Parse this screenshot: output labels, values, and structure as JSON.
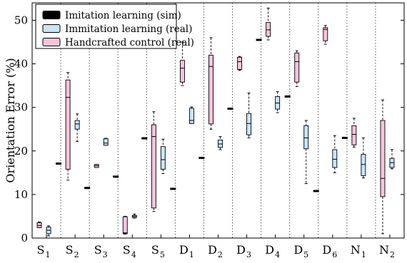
{
  "chart_data": {
    "type": "box",
    "ylabel": "Orientation Error (%)",
    "ylim": [
      0,
      54
    ],
    "yticks": [
      0,
      10,
      20,
      30,
      40,
      50
    ],
    "categories": [
      {
        "main": "S",
        "sub": "1"
      },
      {
        "main": "S",
        "sub": "2"
      },
      {
        "main": "S",
        "sub": "3"
      },
      {
        "main": "S",
        "sub": "4"
      },
      {
        "main": "S",
        "sub": "5"
      },
      {
        "main": "D",
        "sub": "1"
      },
      {
        "main": "D",
        "sub": "2"
      },
      {
        "main": "D",
        "sub": "3"
      },
      {
        "main": "D",
        "sub": "4"
      },
      {
        "main": "D",
        "sub": "5"
      },
      {
        "main": "D",
        "sub": "6"
      },
      {
        "main": "N",
        "sub": "1"
      },
      {
        "main": "N",
        "sub": "2"
      }
    ],
    "legend_position": "top-left",
    "series": [
      {
        "name": "Handcrafted control (real)",
        "color": "#f7c4dc",
        "boxes": [
          {
            "min": 2.4,
            "q1": 2.4,
            "median": 2.9,
            "q3": 3.5,
            "max": 3.7
          },
          {
            "min": 13.3,
            "q1": 15.8,
            "median": 32.3,
            "q3": 36.3,
            "max": 38.0
          },
          {
            "min": 16.2,
            "q1": 16.2,
            "median": 16.6,
            "q3": 16.9,
            "max": 16.9
          },
          {
            "min": 0.9,
            "q1": 1.0,
            "median": 1.2,
            "q3": 4.9,
            "max": 5.0
          },
          {
            "min": 6.1,
            "q1": 6.9,
            "median": 23.3,
            "q3": 26.0,
            "max": 29.0
          },
          {
            "min": 35.0,
            "q1": 35.8,
            "median": 39.0,
            "q3": 40.8,
            "max": 45.0
          },
          {
            "min": 25.0,
            "q1": 26.2,
            "median": 39.4,
            "q3": 42.0,
            "max": 46.0
          },
          {
            "min": 38.5,
            "q1": 38.7,
            "median": 40.5,
            "q3": 41.5,
            "max": 41.7
          },
          {
            "min": 45.5,
            "q1": 46.3,
            "median": 47.8,
            "q3": 49.5,
            "max": 52.8
          },
          {
            "min": 34.8,
            "q1": 35.8,
            "median": 40.5,
            "q3": 42.5,
            "max": 43.0
          },
          {
            "min": 44.5,
            "q1": 45.3,
            "median": 47.9,
            "q3": 48.3,
            "max": 48.8
          },
          {
            "min": 20.9,
            "q1": 21.4,
            "median": 23.8,
            "q3": 25.8,
            "max": 27.5
          },
          {
            "min": 1.0,
            "q1": 9.5,
            "median": 13.7,
            "q3": 27.0,
            "max": 31.7
          }
        ]
      },
      {
        "name": "Immitation learning (real)",
        "color": "#c9e5fb",
        "boxes": [
          {
            "min": 0.5,
            "q1": 1.0,
            "median": 1.8,
            "q3": 2.5,
            "max": 2.8
          },
          {
            "min": 22.2,
            "q1": 25.0,
            "median": 26.2,
            "q3": 27.0,
            "max": 28.5
          },
          {
            "min": 21.3,
            "q1": 21.3,
            "median": 21.8,
            "q3": 22.8,
            "max": 22.9
          },
          {
            "min": 4.6,
            "q1": 4.7,
            "median": 5.0,
            "q3": 5.2,
            "max": 5.5
          },
          {
            "min": 14.8,
            "q1": 15.8,
            "median": 18.0,
            "q3": 21.0,
            "max": 22.7
          },
          {
            "min": 26.3,
            "q1": 26.3,
            "median": 27.0,
            "q3": 29.8,
            "max": 30.1
          },
          {
            "min": 20.3,
            "q1": 20.8,
            "median": 21.6,
            "q3": 22.5,
            "max": 23.3
          },
          {
            "min": 23.0,
            "q1": 23.7,
            "median": 26.3,
            "q3": 28.6,
            "max": 33.3
          },
          {
            "min": 28.8,
            "q1": 29.6,
            "median": 31.0,
            "q3": 32.5,
            "max": 33.6
          },
          {
            "min": 12.5,
            "q1": 20.5,
            "median": 23.0,
            "q3": 25.8,
            "max": 27.0
          },
          {
            "min": 15.0,
            "q1": 16.2,
            "median": 18.1,
            "q3": 20.3,
            "max": 23.5
          },
          {
            "min": 13.8,
            "q1": 14.3,
            "median": 16.9,
            "q3": 19.2,
            "max": 23.0
          },
          {
            "min": 15.9,
            "q1": 16.2,
            "median": 17.3,
            "q3": 18.3,
            "max": 20.3
          }
        ]
      },
      {
        "name": "Imitation learning (sim)",
        "color": "#000000",
        "values": [
          17.1,
          11.5,
          14.1,
          22.9,
          11.3,
          18.4,
          29.7,
          45.5,
          32.5,
          10.8,
          23.0,
          null,
          null
        ]
      }
    ],
    "legend": [
      {
        "label": "Imitation learning (sim)",
        "color": "#000000"
      },
      {
        "label": "Immitation learning (real)",
        "color": "#c9e5fb"
      },
      {
        "label": "Handcrafted control (real)",
        "color": "#f7c4dc"
      }
    ]
  }
}
